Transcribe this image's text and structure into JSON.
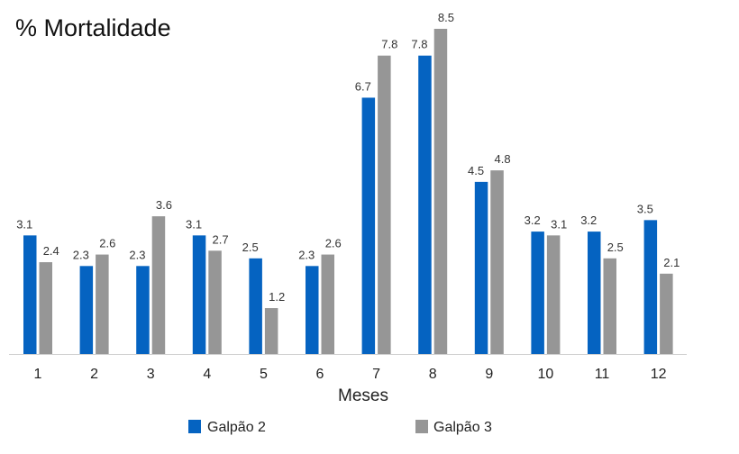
{
  "chart_data": {
    "type": "bar",
    "title": "% Mortalidade",
    "xlabel": "Meses",
    "ylabel": "",
    "categories": [
      "1",
      "2",
      "3",
      "4",
      "5",
      "6",
      "7",
      "8",
      "9",
      "10",
      "11",
      "12"
    ],
    "series": [
      {
        "name": "Galpão 2",
        "color": "#0563C1",
        "values": [
          3.1,
          2.3,
          2.3,
          3.1,
          2.5,
          2.3,
          6.7,
          7.8,
          4.5,
          3.2,
          3.2,
          3.5
        ]
      },
      {
        "name": "Galpão 3",
        "color": "#969696",
        "values": [
          2.4,
          2.6,
          3.6,
          2.7,
          1.2,
          2.6,
          7.8,
          8.5,
          4.8,
          3.1,
          2.5,
          2.1
        ]
      }
    ],
    "ylim": [
      0,
      8.5
    ],
    "grid": false,
    "data_labels": true,
    "legend_position": "bottom"
  }
}
